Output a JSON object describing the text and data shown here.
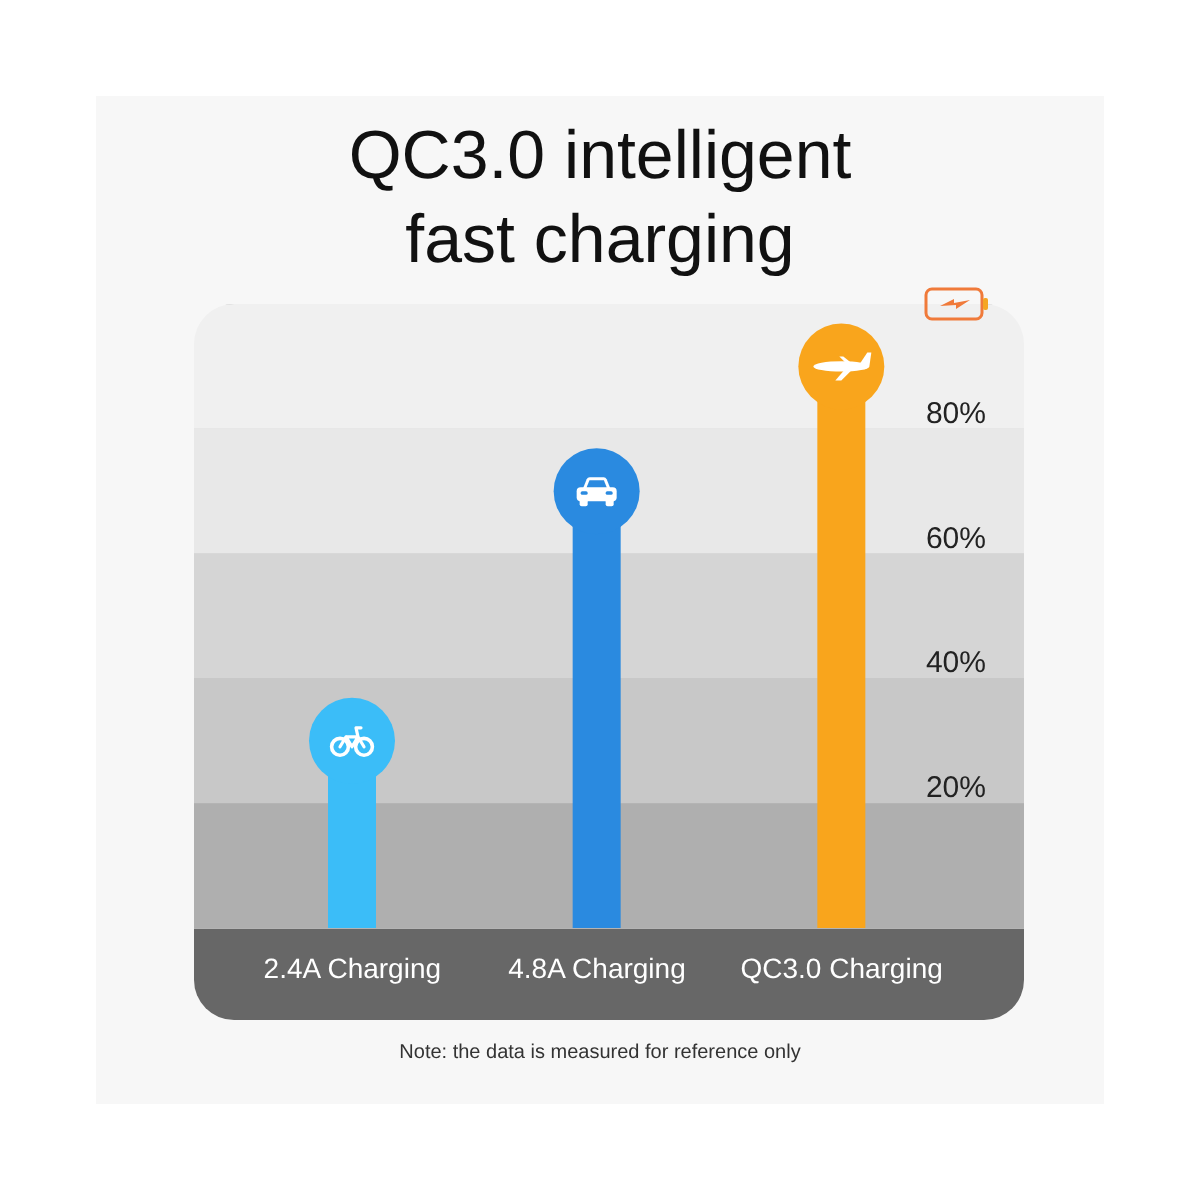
{
  "chart_data": {
    "type": "lollipop",
    "title": "QC3.0 intelligent fast charging",
    "categories": [
      "2.4A Charging",
      "4.8A Charging",
      "QC3.0 Charging"
    ],
    "values": [
      30,
      70,
      90
    ],
    "colors": [
      "#3bbdf8",
      "#2a8ae0",
      "#f9a51c"
    ],
    "ylim": [
      0,
      100
    ],
    "yticks": [
      {
        "value": 20,
        "label": "20%"
      },
      {
        "value": 40,
        "label": "40%"
      },
      {
        "value": 60,
        "label": "60%"
      },
      {
        "value": 80,
        "label": "80%"
      }
    ],
    "grid": "y",
    "bands": [
      {
        "axis": "y",
        "from": 0,
        "to": 20,
        "color": "#afafaf"
      },
      {
        "axis": "y",
        "from": 20,
        "to": 40,
        "color": "#c8c8c8"
      },
      {
        "axis": "y",
        "from": 40,
        "to": 60,
        "color": "#d5d5d5"
      },
      {
        "axis": "y",
        "from": 60,
        "to": 80,
        "color": "#e8e8e8"
      },
      {
        "axis": "y",
        "from": 80,
        "to": 100,
        "color": "#f0f0f0"
      }
    ],
    "annotations": [
      "Note: the data is measured for reference only"
    ]
  }
}
